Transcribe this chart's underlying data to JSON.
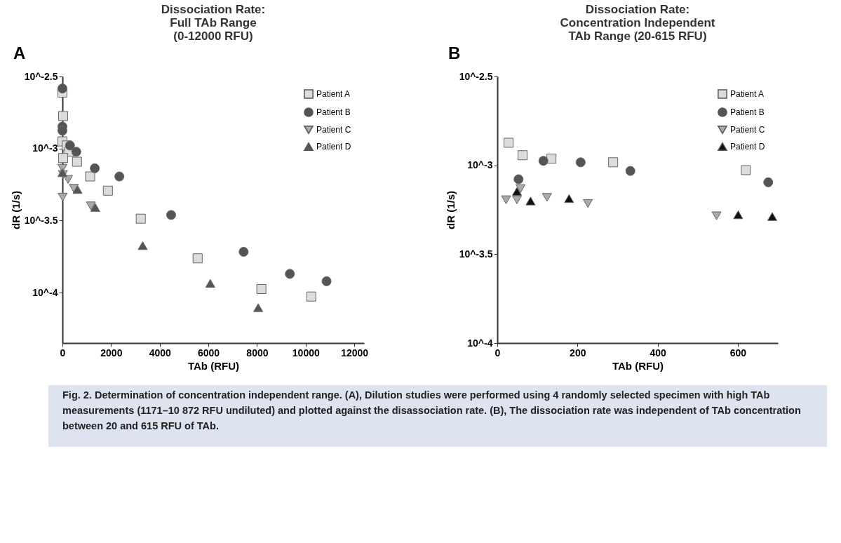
{
  "chart_data": [
    {
      "type": "scatter",
      "title": [
        "Dissociation Rate:",
        "Full TAb Range",
        "(0-12000 RFU)"
      ],
      "xlabel": "TAb (RFU)",
      "ylabel": "dR (1/s)",
      "log": "y",
      "xlim": [
        0,
        12400
      ],
      "xticks": [
        0,
        2000,
        4000,
        6000,
        8000,
        10000,
        12000
      ],
      "ylim": [
        4.47e-05,
        0.003162
      ],
      "yticks": [
        {
          "value": 0.003162,
          "label": "10^-2.5"
        },
        {
          "value": 0.001,
          "label": "10^-3"
        },
        {
          "value": 0.0003162,
          "label": "10^-3.5"
        },
        {
          "value": 0.0001,
          "label": "10^-4"
        }
      ],
      "grid": false,
      "legend": "top right",
      "annotations": [
        "A",
        "Fig. 2. Determination of concentration independent range. (A), Dilution studies were performed using 4 randomly selected specimen with high TAb measurements (1171–10 872 RFU undiluted) and plotted against the disassociation rate. (B), The dissociation rate was independent of TAb concentration between 20 and 615 RFU of TAb."
      ],
      "series": [
        {
          "name": "Patient A",
          "color": "#dcdcdc",
          "marker": "square",
          "x": [
            0,
            30,
            0,
            180,
            290,
            30,
            600,
            1140,
            1870,
            3220,
            5560,
            8180,
            10230
          ],
          "values": [
            0.00244,
            0.00168,
            0.00112,
            0.00105,
            0.00095,
            0.00086,
            0.00081,
            0.00064,
            0.00051,
            0.000326,
            0.000173,
            0.000106,
            9.4e-05
          ]
        },
        {
          "name": "Patient B",
          "color": "#555555",
          "marker": "circle",
          "x": [
            0,
            0,
            0,
            310,
            570,
            1330,
            2340,
            4470,
            7450,
            9350,
            10860
          ],
          "values": [
            0.00261,
            0.00142,
            0.00133,
            0.00105,
            0.00095,
            0.00073,
            0.00064,
            0.000346,
            0.000192,
            0.000135,
            0.00012
          ]
        },
        {
          "name": "Patient C",
          "color": "#aaaaaa",
          "marker": "triangle-down",
          "x": [
            0,
            20,
            230,
            470,
            10,
            1170
          ],
          "values": [
            0.00073,
            0.00066,
            0.00061,
            0.00053,
            0.00046,
            0.0004
          ]
        },
        {
          "name": "Patient D",
          "color": "#555555",
          "marker": "triangle",
          "x": [
            0,
            620,
            1350,
            3300,
            6080,
            8050
          ],
          "values": [
            0.00068,
            0.00052,
            0.00039,
            0.000212,
            0.000116,
            7.87e-05
          ]
        }
      ]
    },
    {
      "type": "scatter",
      "title": [
        "Dissociation Rate:",
        "Concentration Independent",
        "TAb Range (20-615 RFU)"
      ],
      "xlabel": "TAb (RFU)",
      "ylabel": "dR (1/s)",
      "log": "y",
      "xlim": [
        0,
        700
      ],
      "xticks": [
        0,
        200,
        400,
        600
      ],
      "ylim": [
        0.0001,
        0.003162
      ],
      "yticks": [
        {
          "value": 0.003162,
          "label": "10^-2.5"
        },
        {
          "value": 0.001,
          "label": "10^-3"
        },
        {
          "value": 0.0003162,
          "label": "10^-3.5"
        },
        {
          "value": 0.0001,
          "label": "10^-4"
        }
      ],
      "grid": false,
      "legend": "top right",
      "annotations": [
        "B"
      ],
      "series": [
        {
          "name": "Patient A",
          "color": "#dcdcdc",
          "marker": "square",
          "x": [
            28,
            63,
            135,
            289,
            620
          ],
          "values": [
            0.00134,
            0.00114,
            0.00109,
            0.00104,
            0.00094
          ]
        },
        {
          "name": "Patient B",
          "color": "#555555",
          "marker": "circle",
          "x": [
            53,
            115,
            208,
            332,
            676
          ],
          "values": [
            0.000835,
            0.00106,
            0.00104,
            0.00093,
            0.000803
          ]
        },
        {
          "name": "Patient C",
          "color": "#aaaaaa",
          "marker": "triangle-down",
          "x": [
            22,
            49,
            58,
            124,
            226,
            547
          ],
          "values": [
            0.00064,
            0.00064,
            0.00074,
            0.00066,
            0.00061,
            0.00052
          ]
        },
        {
          "name": "Patient D",
          "color": "#111111",
          "marker": "triangle",
          "x": [
            49,
            83,
            179,
            601,
            686
          ],
          "values": [
            0.000713,
            0.00063,
            0.00065,
            0.000527,
            0.000515
          ]
        }
      ]
    }
  ]
}
